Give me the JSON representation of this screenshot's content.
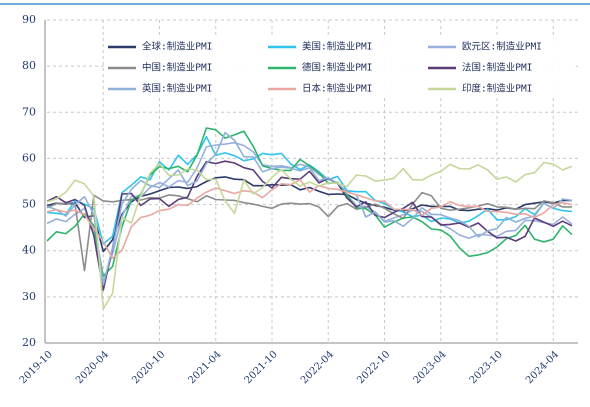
{
  "chart_data": {
    "type": "line",
    "categories": [
      "2019-10",
      null,
      null,
      null,
      null,
      null,
      "2020-04",
      null,
      null,
      null,
      null,
      null,
      "2020-10",
      null,
      null,
      null,
      null,
      null,
      "2021-04",
      null,
      null,
      null,
      null,
      null,
      "2021-10",
      null,
      null,
      null,
      null,
      null,
      "2022-04",
      null,
      null,
      null,
      null,
      null,
      "2022-10",
      null,
      null,
      null,
      null,
      null,
      "2023-04",
      null,
      null,
      null,
      null,
      null,
      "2023-10",
      null,
      null,
      null,
      null,
      null,
      "2024-04",
      null,
      null
    ],
    "ylim": [
      20,
      90
    ],
    "yticks": [
      20,
      30,
      40,
      50,
      60,
      70,
      80,
      90
    ],
    "grid": true,
    "series": [
      {
        "name": "全球:制造业PMI",
        "color": "#2b3a6b",
        "values": [
          49.8,
          50.3,
          50.1,
          50.4,
          47.2,
          47.6,
          39.8,
          42.4,
          47.9,
          50.6,
          51.8,
          52.3,
          53.0,
          53.7,
          53.8,
          53.5,
          53.9,
          55.0,
          55.8,
          56.0,
          55.5,
          55.4,
          54.1,
          54.1,
          54.3,
          54.2,
          54.3,
          53.2,
          53.7,
          52.9,
          52.2,
          52.3,
          52.2,
          51.1,
          50.3,
          49.8,
          49.4,
          48.8,
          48.6,
          49.1,
          49.9,
          49.6,
          49.6,
          49.6,
          48.8,
          48.7,
          49.0,
          49.1,
          48.8,
          49.3,
          49.0,
          50.0,
          50.3,
          50.6,
          50.3,
          50.9,
          50.9
        ]
      },
      {
        "name": "美国:制造业PMI",
        "color": "#2ec4ee",
        "values": [
          48.3,
          48.1,
          47.8,
          50.9,
          50.1,
          49.1,
          41.5,
          43.1,
          52.6,
          54.2,
          56.0,
          55.4,
          59.3,
          57.5,
          60.7,
          58.7,
          60.8,
          64.7,
          60.7,
          61.2,
          60.6,
          59.5,
          59.9,
          61.1,
          60.8,
          61.1,
          58.8,
          57.6,
          58.6,
          57.1,
          55.4,
          56.1,
          53.0,
          52.8,
          52.8,
          50.9,
          50.2,
          49.0,
          48.4,
          47.4,
          47.7,
          46.3,
          47.1,
          46.9,
          46.0,
          46.4,
          47.6,
          49.0,
          46.7,
          46.7,
          47.4,
          49.1,
          47.8,
          50.3,
          49.2,
          48.7,
          48.5
        ]
      },
      {
        "name": "欧元区:制造业PMI",
        "color": "#9aaee0",
        "values": [
          45.9,
          46.9,
          46.3,
          47.9,
          49.2,
          44.5,
          33.4,
          39.4,
          47.4,
          51.8,
          51.7,
          53.7,
          54.8,
          53.8,
          55.2,
          54.8,
          57.9,
          62.5,
          62.9,
          63.1,
          63.4,
          62.8,
          61.4,
          58.6,
          58.3,
          58.4,
          58.0,
          58.7,
          58.2,
          56.5,
          55.5,
          54.6,
          52.1,
          49.8,
          49.6,
          48.4,
          46.4,
          47.1,
          47.8,
          48.8,
          48.5,
          47.3,
          45.8,
          44.8,
          43.4,
          42.7,
          43.5,
          43.4,
          43.1,
          44.2,
          44.4,
          46.6,
          46.5,
          46.1,
          45.7,
          47.3,
          45.8
        ]
      },
      {
        "name": "中国:制造业PMI",
        "color": "#8c8c8c",
        "values": [
          49.3,
          50.2,
          50.2,
          50.0,
          35.7,
          52.0,
          50.8,
          50.6,
          50.9,
          51.1,
          51.0,
          51.5,
          51.4,
          52.1,
          51.9,
          51.3,
          50.6,
          51.9,
          51.1,
          51.0,
          50.9,
          50.4,
          50.1,
          49.6,
          49.2,
          50.1,
          50.3,
          50.1,
          50.2,
          49.5,
          47.4,
          49.6,
          50.2,
          49.0,
          49.4,
          50.1,
          49.2,
          48.0,
          47.0,
          50.1,
          52.6,
          51.9,
          49.2,
          48.8,
          49.0,
          49.3,
          49.7,
          50.2,
          49.5,
          49.4,
          49.0,
          49.2,
          49.1,
          50.8,
          50.4,
          49.5,
          49.5
        ]
      },
      {
        "name": "德国:制造业PMI",
        "color": "#2db56b",
        "values": [
          42.1,
          44.1,
          43.7,
          45.3,
          48.0,
          45.4,
          34.5,
          36.6,
          45.2,
          51.0,
          52.2,
          56.4,
          58.2,
          57.8,
          58.3,
          57.1,
          60.7,
          66.6,
          66.2,
          64.4,
          65.1,
          65.9,
          62.6,
          58.4,
          57.8,
          57.4,
          57.4,
          59.8,
          58.4,
          56.9,
          54.6,
          54.8,
          52.0,
          49.3,
          49.1,
          47.8,
          45.1,
          46.2,
          47.1,
          47.3,
          46.3,
          44.7,
          44.5,
          43.2,
          40.6,
          38.8,
          39.1,
          39.6,
          40.8,
          42.6,
          43.3,
          45.5,
          42.5,
          41.9,
          42.5,
          45.4,
          43.5
        ]
      },
      {
        "name": "法国:制造业PMI",
        "color": "#5a3d7a",
        "values": [
          50.7,
          51.7,
          50.4,
          51.1,
          49.8,
          43.2,
          31.5,
          40.6,
          52.3,
          52.4,
          49.8,
          51.2,
          51.3,
          49.6,
          51.1,
          51.6,
          56.1,
          59.3,
          58.9,
          59.4,
          59.0,
          58.0,
          57.5,
          55.0,
          53.6,
          55.9,
          55.6,
          55.5,
          57.2,
          54.7,
          55.7,
          54.6,
          51.4,
          49.5,
          50.6,
          47.7,
          47.2,
          48.3,
          49.2,
          50.5,
          47.4,
          47.3,
          45.6,
          45.7,
          46.0,
          45.1,
          46.0,
          44.2,
          42.8,
          42.9,
          42.1,
          43.1,
          47.1,
          46.2,
          45.3,
          46.4,
          45.4
        ]
      },
      {
        "name": "英国:制造业PMI",
        "color": "#8fb0d8",
        "values": [
          49.6,
          48.9,
          47.5,
          50.0,
          51.7,
          47.8,
          32.6,
          40.7,
          50.1,
          53.3,
          55.2,
          54.1,
          53.7,
          55.6,
          57.5,
          54.1,
          55.1,
          58.9,
          60.9,
          65.6,
          63.9,
          60.4,
          60.3,
          57.1,
          57.8,
          58.1,
          57.9,
          57.3,
          58.0,
          55.2,
          55.8,
          54.6,
          52.8,
          52.1,
          47.3,
          48.4,
          46.2,
          46.5,
          45.3,
          47.0,
          49.3,
          47.9,
          47.8,
          47.1,
          46.5,
          45.3,
          43.0,
          44.3,
          44.8,
          47.2,
          46.2,
          47.0,
          47.5,
          50.3,
          49.1,
          51.2,
          50.9
        ]
      },
      {
        "name": "日本:制造业PMI",
        "color": "#e8a8a0",
        "values": [
          48.4,
          48.9,
          48.4,
          48.8,
          47.8,
          44.8,
          41.9,
          38.4,
          40.1,
          45.2,
          47.2,
          47.7,
          48.7,
          49.0,
          50.0,
          49.8,
          51.4,
          52.7,
          53.6,
          53.0,
          52.4,
          53.0,
          52.7,
          51.5,
          53.2,
          54.5,
          54.3,
          55.4,
          52.7,
          54.1,
          53.5,
          53.3,
          52.7,
          52.1,
          51.5,
          50.8,
          50.7,
          49.0,
          48.9,
          48.9,
          47.7,
          49.2,
          49.5,
          50.6,
          49.8,
          49.6,
          49.6,
          48.5,
          48.5,
          48.3,
          47.9,
          48.0,
          47.2,
          48.2,
          50.0,
          50.4,
          50.0
        ]
      },
      {
        "name": "印度:制造业PMI",
        "color": "#c5d89a",
        "values": [
          50.6,
          51.2,
          52.7,
          55.3,
          54.5,
          51.8,
          27.4,
          30.8,
          47.2,
          46.0,
          52.0,
          56.8,
          58.9,
          56.3,
          56.4,
          57.7,
          57.5,
          55.4,
          55.5,
          50.8,
          48.1,
          55.3,
          52.3,
          53.7,
          55.9,
          57.6,
          55.5,
          54.0,
          54.9,
          54.0,
          54.7,
          54.6,
          53.9,
          56.4,
          56.2,
          55.1,
          55.3,
          55.7,
          57.8,
          55.4,
          55.3,
          56.4,
          57.2,
          58.7,
          57.8,
          57.7,
          58.6,
          57.5,
          55.5,
          56.0,
          54.9,
          56.5,
          56.9,
          59.1,
          58.8,
          57.5,
          58.3
        ]
      }
    ]
  }
}
